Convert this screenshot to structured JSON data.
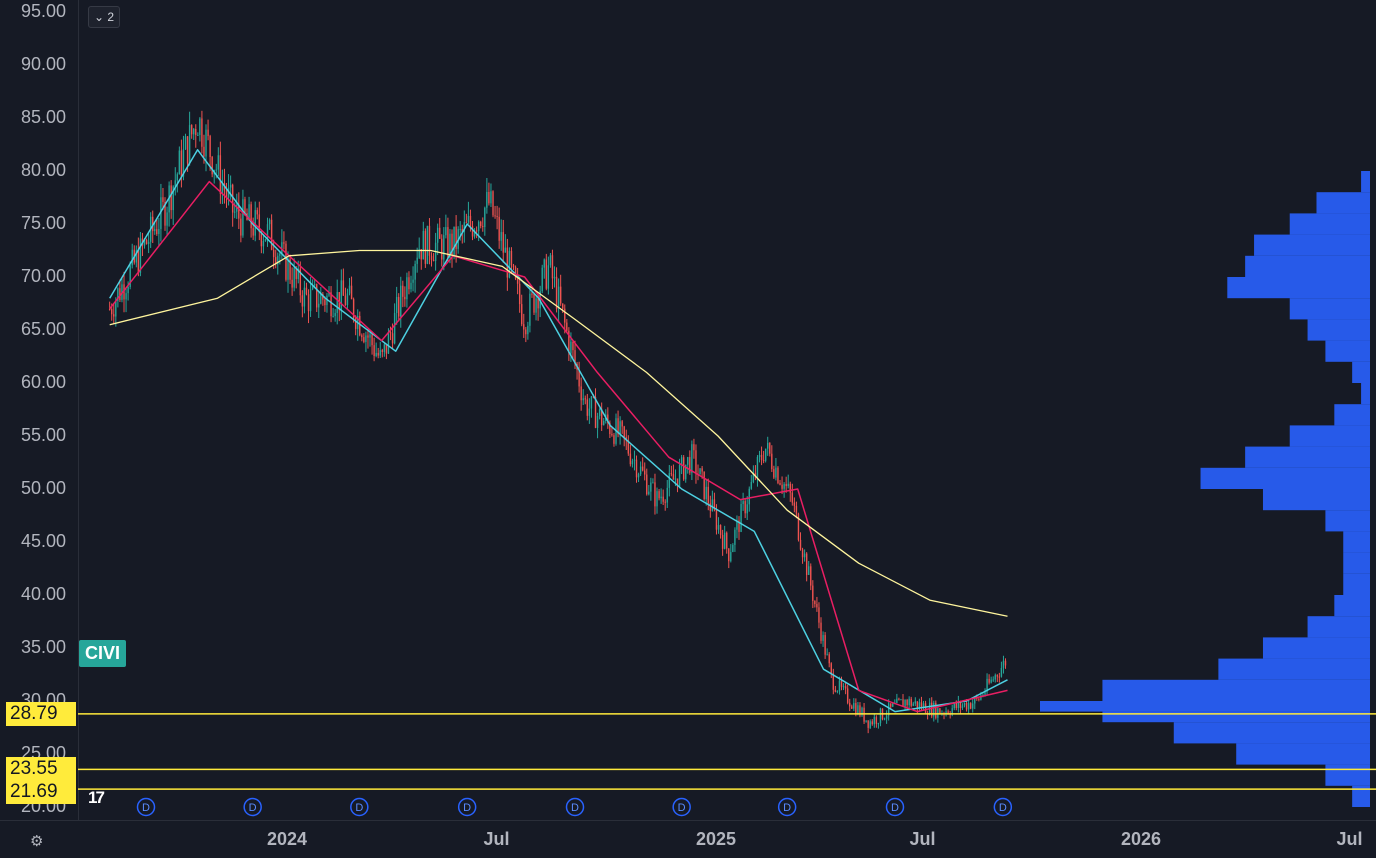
{
  "legend": {
    "collapsed_count": "2"
  },
  "ticker": "CIVI",
  "price_labels": [
    "28.79",
    "23.55",
    "21.69"
  ],
  "y_ticks": [
    "95.00",
    "90.00",
    "85.00",
    "80.00",
    "75.00",
    "70.00",
    "65.00",
    "60.00",
    "55.00",
    "50.00",
    "45.00",
    "40.00",
    "35.00",
    "30.00",
    "25.00",
    "20.00"
  ],
  "x_ticks": [
    "2024",
    "Jul",
    "2025",
    "Jul",
    "2026",
    "Jul"
  ],
  "dividend_marker": "D",
  "colors": {
    "up": "#26a69a",
    "down": "#ef5350",
    "ma_fast": "#4dd0e1",
    "ma_mid": "#e91e63",
    "ma_slow": "#fff59d",
    "profile": "#2962ff",
    "level": "#ffeb3b"
  },
  "chart_data": {
    "type": "line",
    "title": "",
    "xlabel": "",
    "ylabel": "",
    "ylim": [
      20,
      95
    ],
    "xlim": [
      "2023-08-01",
      "2026-07-01"
    ],
    "horizontal_levels": [
      28.79,
      23.55,
      21.69
    ],
    "dividend_dates": [
      "2023-09-01",
      "2023-12-01",
      "2024-03-01",
      "2024-06-01",
      "2024-09-01",
      "2024-12-01",
      "2025-03-01",
      "2025-06-01",
      "2025-09-01"
    ],
    "price_path": {
      "x": [
        "2023-08-01",
        "2023-09-15",
        "2023-10-15",
        "2023-11-15",
        "2023-12-15",
        "2024-01-15",
        "2024-02-20",
        "2024-03-20",
        "2024-04-20",
        "2024-05-20",
        "2024-06-20",
        "2024-07-20",
        "2024-08-10",
        "2024-09-10",
        "2024-10-10",
        "2024-11-10",
        "2024-12-10",
        "2025-01-10",
        "2025-02-10",
        "2025-03-05",
        "2025-04-08",
        "2025-05-10",
        "2025-06-10",
        "2025-07-10",
        "2025-08-10",
        "2025-09-05"
      ],
      "y": [
        67,
        76,
        85,
        76,
        74,
        68,
        68,
        62,
        73,
        73,
        77,
        66,
        71,
        58,
        55,
        49,
        53,
        44,
        54,
        49,
        32,
        28,
        30,
        29,
        30,
        34
      ]
    },
    "series": [
      {
        "values_x": [
          "2023-08-01",
          "2023-10-15",
          "2023-12-01",
          "2024-02-01",
          "2024-04-01",
          "2024-06-01",
          "2024-08-01",
          "2024-10-01",
          "2024-12-01",
          "2025-02-01",
          "2025-04-01",
          "2025-06-01",
          "2025-08-01",
          "2025-09-05"
        ],
        "values": [
          68,
          82,
          75,
          68,
          63,
          75,
          68,
          56,
          50,
          46,
          33,
          29,
          30,
          32
        ]
      },
      {
        "values_x": [
          "2023-08-01",
          "2023-10-25",
          "2024-01-01",
          "2024-03-20",
          "2024-05-20",
          "2024-07-20",
          "2024-09-20",
          "2024-11-20",
          "2025-01-20",
          "2025-03-10",
          "2025-05-01",
          "2025-06-20",
          "2025-09-05"
        ],
        "values": [
          67,
          79,
          72,
          64,
          72,
          70,
          61,
          53,
          49,
          50,
          31,
          29,
          31
        ]
      },
      {
        "values_x": [
          "2023-08-01",
          "2023-11-01",
          "2024-01-01",
          "2024-03-01",
          "2024-05-01",
          "2024-07-01",
          "2024-09-01",
          "2024-11-01",
          "2025-01-01",
          "2025-03-01",
          "2025-05-01",
          "2025-07-01",
          "2025-09-05"
        ],
        "values": [
          65.5,
          68,
          72,
          72.5,
          72.5,
          71,
          66,
          61,
          55,
          48,
          43,
          39.5,
          38
        ]
      }
    ],
    "volume_profile": {
      "price": [
        20,
        22,
        24,
        26,
        28,
        29,
        30,
        32,
        34,
        36,
        38,
        40,
        42,
        44,
        46,
        48,
        50,
        52,
        54,
        56,
        58,
        60,
        62,
        64,
        66,
        68,
        70,
        72,
        74,
        76,
        78
      ],
      "volume": [
        0.02,
        0.05,
        0.15,
        0.22,
        0.3,
        0.37,
        0.3,
        0.17,
        0.12,
        0.07,
        0.04,
        0.03,
        0.03,
        0.03,
        0.05,
        0.12,
        0.19,
        0.14,
        0.09,
        0.04,
        0.01,
        0.02,
        0.05,
        0.07,
        0.09,
        0.16,
        0.14,
        0.13,
        0.09,
        0.06,
        0.01
      ]
    }
  }
}
